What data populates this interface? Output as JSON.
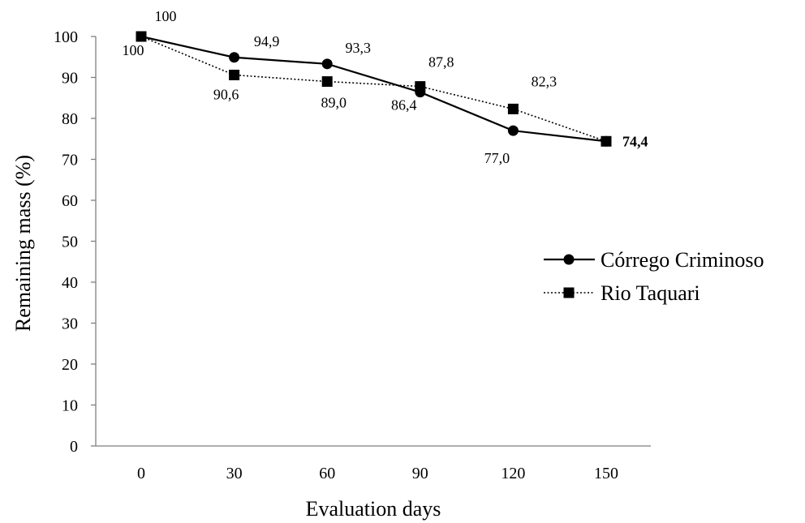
{
  "chart_data": {
    "type": "line",
    "title": "",
    "xlabel": "Evaluation days",
    "ylabel": "Remaining mass  (%)",
    "x": [
      0,
      30,
      60,
      90,
      120,
      150
    ],
    "x_tick_labels": [
      "0",
      "30",
      "60",
      "90",
      "120",
      "150"
    ],
    "ylim": [
      0,
      100
    ],
    "y_ticks": [
      0,
      10,
      20,
      30,
      40,
      50,
      60,
      70,
      80,
      90,
      100
    ],
    "y_tick_labels": [
      "0",
      "10",
      "20",
      "30",
      "40",
      "50",
      "60",
      "70",
      "80",
      "90",
      "100"
    ],
    "grid": false,
    "legend_position": "right",
    "series": [
      {
        "name": "Córrego Criminoso",
        "marker": "circle",
        "line_style": "solid",
        "color": "#000000",
        "values": [
          100,
          94.9,
          93.3,
          86.4,
          77.0,
          74.4
        ],
        "data_labels": [
          "100",
          "94,9",
          "93,3",
          "86,4",
          "77,0",
          "74,4"
        ]
      },
      {
        "name": "Rio Taquari",
        "marker": "square",
        "line_style": "dotted",
        "color": "#000000",
        "values": [
          100,
          90.6,
          89.0,
          87.8,
          82.3,
          74.4
        ],
        "data_labels": [
          "100",
          "90,6",
          "89,0",
          "87,8",
          "82,3",
          "74,4"
        ]
      }
    ]
  }
}
